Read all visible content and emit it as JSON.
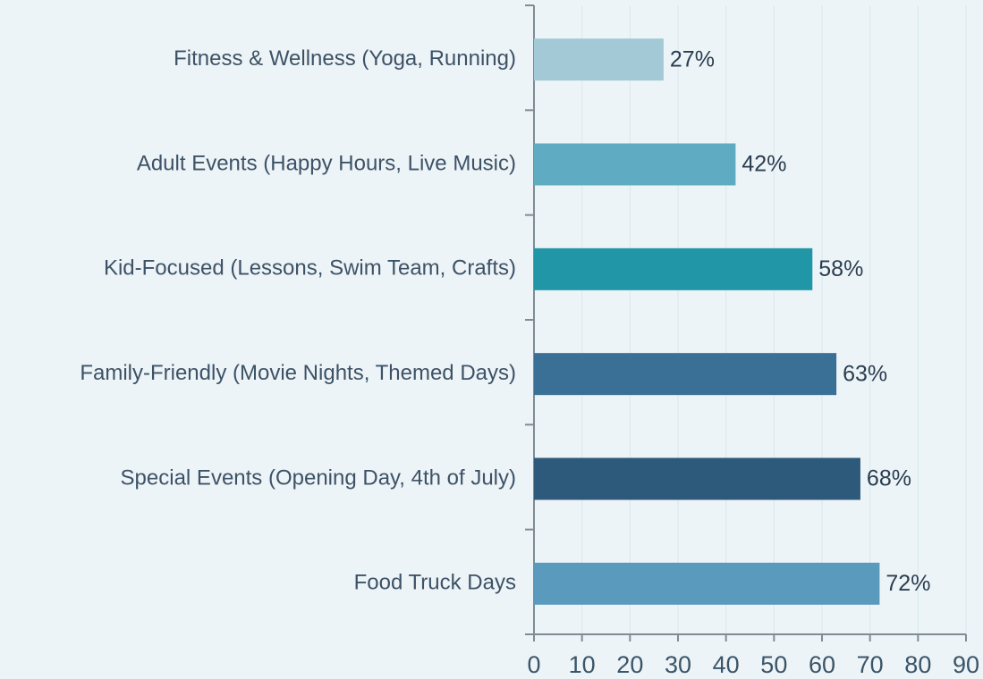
{
  "chart_data": {
    "type": "barh",
    "categories": [
      "Fitness & Wellness (Yoga, Running)",
      "Adult Events (Happy Hours, Live Music)",
      "Kid-Focused (Lessons, Swim Team, Crafts)",
      "Family-Friendly (Movie Nights, Themed Days)",
      "Special Events (Opening Day, 4th of July)",
      "Food Truck Days"
    ],
    "values": [
      27,
      42,
      58,
      63,
      68,
      72
    ],
    "value_labels": [
      "27%",
      "42%",
      "58%",
      "63%",
      "68%",
      "72%"
    ],
    "colors": [
      "#a3c9d6",
      "#5eabc2",
      "#2196a6",
      "#3a6f96",
      "#2d5a7b",
      "#5a9abd"
    ],
    "xlim": [
      0,
      90
    ],
    "xticks": [
      0,
      10,
      20,
      30,
      40,
      50,
      60,
      70,
      80,
      90
    ],
    "grid": true
  }
}
